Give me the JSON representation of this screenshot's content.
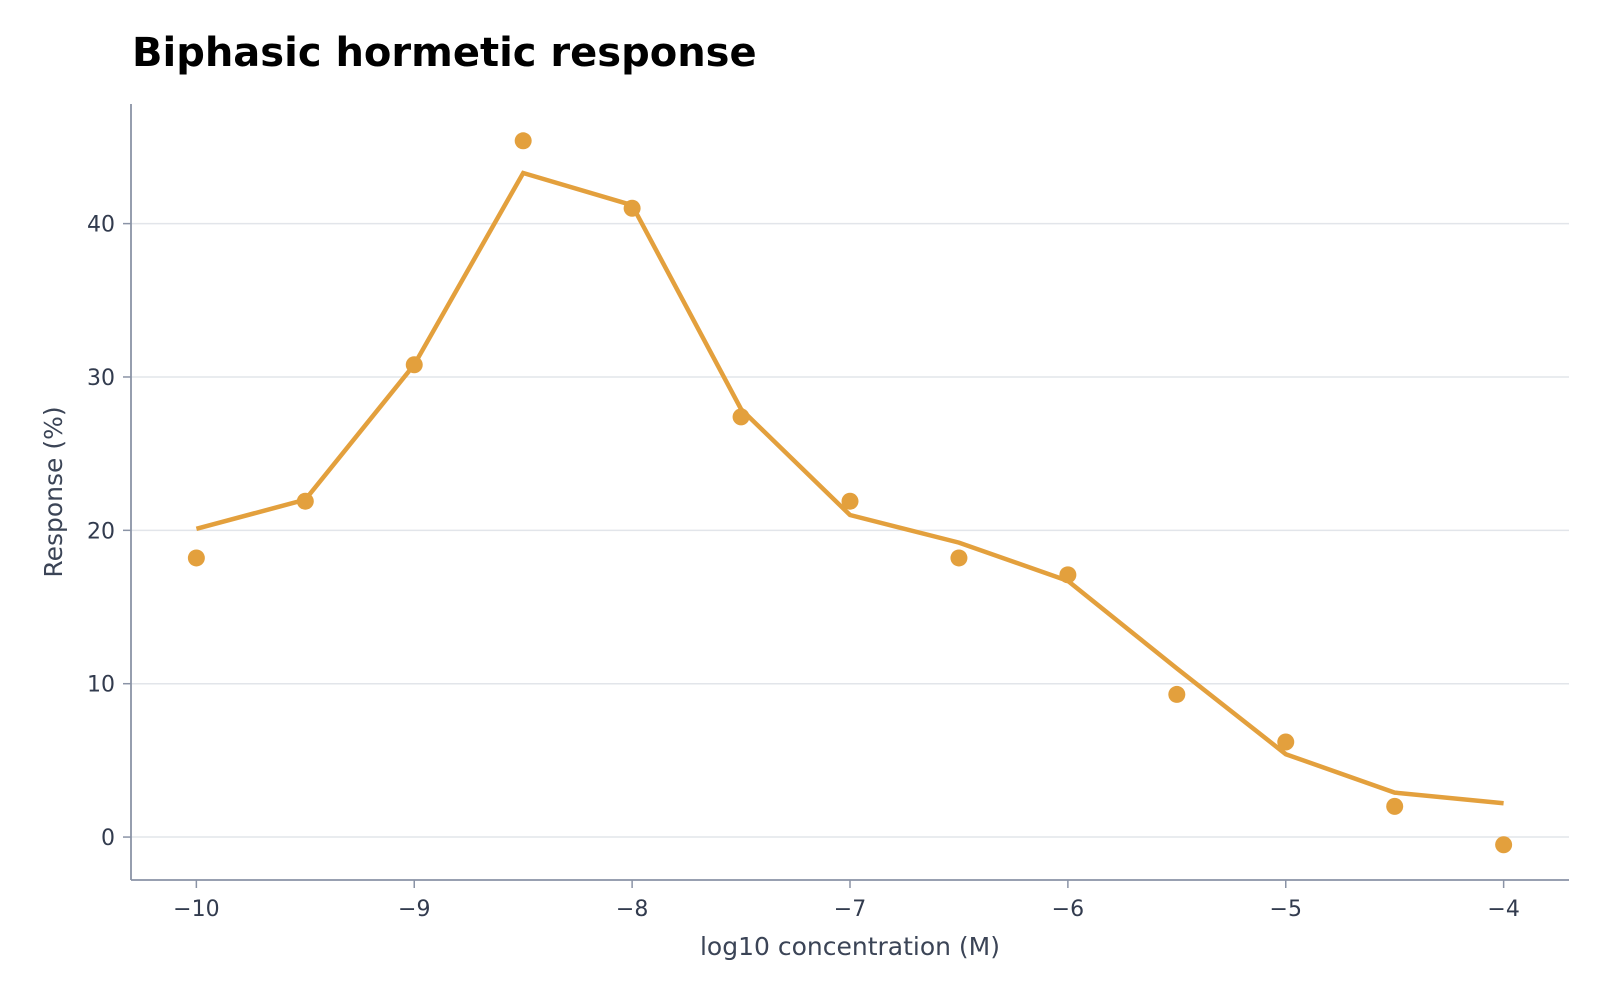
{
  "chart_data": {
    "type": "line",
    "title": "Biphasic hormetic response",
    "xlabel": "log10 concentration (M)",
    "ylabel": "Response (%)",
    "xlim": [
      -10.3,
      -3.7
    ],
    "ylim": [
      -2.8,
      47.8
    ],
    "xticks": [
      -10,
      -9,
      -8,
      -7,
      -6,
      -5,
      -4
    ],
    "xtick_labels": [
      "−10",
      "−9",
      "−8",
      "−7",
      "−6",
      "−5",
      "−4"
    ],
    "yticks": [
      0,
      10,
      20,
      30,
      40
    ],
    "ytick_labels": [
      "0",
      "10",
      "20",
      "30",
      "40"
    ],
    "grid": "horizontal",
    "legend": "none",
    "series": [
      {
        "kind": "scatter",
        "x": [
          -10,
          -9.5,
          -9,
          -8.5,
          -8,
          -7.5,
          -7,
          -6.5,
          -6,
          -5.5,
          -5,
          -4.5,
          -4
        ],
        "values": [
          18.2,
          21.9,
          30.8,
          45.4,
          41.0,
          27.4,
          21.9,
          18.2,
          17.1,
          9.3,
          6.2,
          2.0,
          -0.5
        ]
      },
      {
        "kind": "line",
        "x": [
          -10,
          -9.5,
          -9,
          -8.5,
          -8,
          -7.5,
          -7,
          -6.5,
          -6,
          -5.5,
          -5,
          -4.5,
          -4
        ],
        "values": [
          20.1,
          22.0,
          30.8,
          43.3,
          41.2,
          27.9,
          21.0,
          19.2,
          16.7,
          11.0,
          5.4,
          2.9,
          2.2
        ]
      }
    ],
    "colors": {
      "series": "#e3a03d",
      "grid": "#e2e5ea",
      "axis": "#8a93a6",
      "tick_text": "#323b4e",
      "label_text": "#3b4456"
    }
  }
}
